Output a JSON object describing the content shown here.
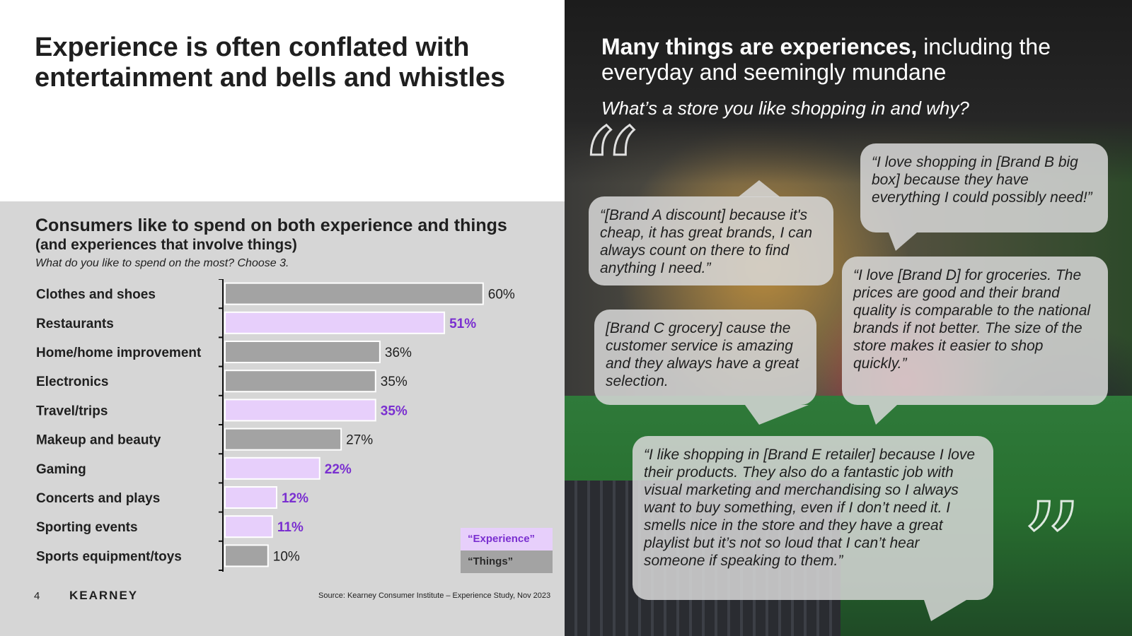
{
  "slide": {
    "title": "Experience is often conflated with entertainment and bells and whistles",
    "page_number": "4",
    "brand": "KEARNEY",
    "source": "Source: Kearney Consumer Institute – Experience Study, Nov 2023"
  },
  "chart_data": {
    "type": "bar",
    "orientation": "horizontal",
    "title": "Consumers like to spend on both experience and things",
    "subtitle": "(and experiences that involve things)",
    "question": "What do you like to spend on the most? Choose 3.",
    "categories": [
      "Clothes and shoes",
      "Restaurants",
      "Home/home improvement",
      "Electronics",
      "Travel/trips",
      "Makeup and beauty",
      "Gaming",
      "Concerts and plays",
      "Sporting events",
      "Sports equipment/toys"
    ],
    "values": [
      60,
      51,
      36,
      35,
      35,
      27,
      22,
      12,
      11,
      10
    ],
    "value_labels": [
      "60%",
      "51%",
      "36%",
      "35%",
      "35%",
      "27%",
      "22%",
      "12%",
      "11%",
      "10%"
    ],
    "groups": [
      "things",
      "experience",
      "things",
      "things",
      "experience",
      "things",
      "experience",
      "experience",
      "experience",
      "things"
    ],
    "colors": {
      "experience": "#e7cffb",
      "things": "#a3a3a3",
      "experience_label": "#7a2fd0",
      "things_label": "#1f1f1f"
    },
    "legend": {
      "experience": "“Experience”",
      "things": "“Things”",
      "position": "bottom-right"
    },
    "xlim": [
      0,
      100
    ],
    "units": "%"
  },
  "right": {
    "heading_bold": "Many things are experiences,",
    "heading_rest": " including the everyday and seemingly mundane",
    "question": "What’s a store you like shopping in and why?",
    "quotes": [
      "“[Brand A discount] because it's cheap, it has great brands, I can always count on there to find anything I need.”",
      "“I love shopping in [Brand B big box] because they have everything I could possibly need!”",
      "[Brand C grocery] cause the customer service is amazing and they always have a great selection.",
      "“I love [Brand D] for groceries. The prices are good and their brand quality is comparable to the national brands if not better. The size of the store makes it easier to shop quickly.”",
      "“I like shopping in [Brand E retailer] because I love their products. They also do a fantastic job with visual marketing and merchandising so I always want to buy something, even if I don’t need it. I smells nice in the store and they have a great playlist but it’s not so loud that I can’t hear someone if speaking to them.”"
    ]
  }
}
